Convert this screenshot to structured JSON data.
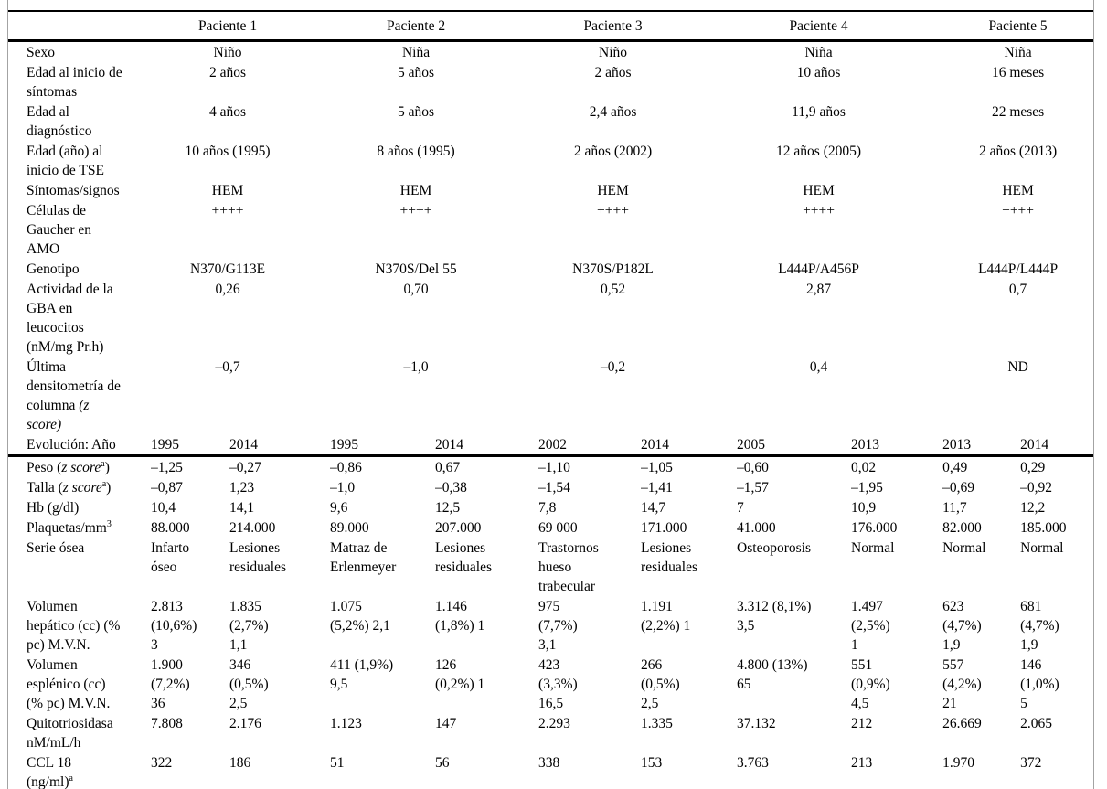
{
  "table": {
    "corner_label": "",
    "patients": [
      "Paciente 1",
      "Paciente 2",
      "Paciente 3",
      "Paciente 4",
      "Paciente 5"
    ],
    "grouped_rows": [
      {
        "id": "sexo",
        "label": [
          {
            "t": "n",
            "v": "Sexo"
          }
        ],
        "values": [
          "Niño",
          "Niña",
          "Niño",
          "Niña",
          "Niña"
        ]
      },
      {
        "id": "edad-inicio-sintomas",
        "label": [
          {
            "t": "n",
            "v": "Edad al inicio de\nsíntomas"
          }
        ],
        "values": [
          "2 años",
          "5 años",
          "2 años",
          "10 años",
          "16 meses"
        ]
      },
      {
        "id": "edad-diagnostico",
        "label": [
          {
            "t": "n",
            "v": "Edad al\ndiagnóstico"
          }
        ],
        "values": [
          "4 años",
          "5 años",
          "2,4 años",
          "11,9 años",
          "22 meses"
        ]
      },
      {
        "id": "edad-inicio-tse",
        "label": [
          {
            "t": "n",
            "v": "Edad (año) al\ninicio de TSE"
          }
        ],
        "values": [
          "10 años (1995)",
          "8 años (1995)",
          "2 años (2002)",
          "12 años (2005)",
          "2 años (2013)"
        ]
      },
      {
        "id": "sintomas-signos",
        "label": [
          {
            "t": "n",
            "v": "Síntomas/signos"
          }
        ],
        "values": [
          "HEM",
          "HEM",
          "HEM",
          "HEM",
          "HEM"
        ]
      },
      {
        "id": "celulas-gaucher-amo",
        "label": [
          {
            "t": "n",
            "v": "Células de\nGaucher en\nAMO"
          }
        ],
        "values": [
          "++++",
          "++++",
          "++++",
          "++++",
          "++++"
        ]
      },
      {
        "id": "genotipo",
        "label": [
          {
            "t": "n",
            "v": "Genotipo"
          }
        ],
        "values": [
          "N370/G113E",
          "N370S/Del 55",
          "N370S/P182L",
          "L444P/A456P",
          "L444P/L444P"
        ]
      },
      {
        "id": "actividad-gba",
        "label": [
          {
            "t": "n",
            "v": "Actividad de la\nGBA en\nleucocitos\n(nM/mg Pr.h)"
          }
        ],
        "values": [
          "0,26",
          "0,70",
          "0,52",
          "2,87",
          "0,7"
        ]
      },
      {
        "id": "ultima-densitometria",
        "label": [
          {
            "t": "n",
            "v": "Última\ndensitometría de\ncolumna "
          },
          {
            "t": "i",
            "v": "(z\nscore)"
          }
        ],
        "values": [
          "–0,7",
          "–1,0",
          "–0,2",
          "0,4",
          "ND"
        ]
      }
    ],
    "evolution_row": {
      "label": [
        {
          "t": "n",
          "v": "Evolución: Año"
        }
      ],
      "values": [
        "1995",
        "2014",
        "1995",
        "2014",
        "2002",
        "2014",
        "2005",
        "2013",
        "2013",
        "2014"
      ]
    },
    "detail_rows": [
      {
        "id": "peso-z-score",
        "label": [
          {
            "t": "n",
            "v": "Peso ("
          },
          {
            "t": "i",
            "v": "z score"
          },
          {
            "t": "s",
            "v": "a"
          },
          {
            "t": "n",
            "v": ")"
          }
        ],
        "values": [
          "–1,25",
          "–0,27",
          "–0,86",
          "0,67",
          "–1,10",
          "–1,05",
          "–0,60",
          "0,02",
          "0,49",
          "0,29"
        ]
      },
      {
        "id": "talla-z-score",
        "label": [
          {
            "t": "n",
            "v": "Talla ("
          },
          {
            "t": "i",
            "v": "z score"
          },
          {
            "t": "s",
            "v": "a"
          },
          {
            "t": "n",
            "v": ")"
          }
        ],
        "values": [
          "–0,87",
          "1,23",
          "–1,0",
          "–0,38",
          "–1,54",
          "–1,41",
          "–1,57",
          "–1,95",
          "–0,69",
          "–0,92"
        ]
      },
      {
        "id": "hb",
        "label": [
          {
            "t": "n",
            "v": "Hb (g/dl)"
          }
        ],
        "values": [
          "10,4",
          "14,1",
          "9,6",
          "12,5",
          "7,8",
          "14,7",
          "7",
          "10,9",
          "11,7",
          "12,2"
        ]
      },
      {
        "id": "plaquetas",
        "label": [
          {
            "t": "n",
            "v": "Plaquetas/mm"
          },
          {
            "t": "s",
            "v": "3"
          }
        ],
        "values": [
          "88.000",
          "214.000",
          "89.000",
          "207.000",
          "69 000",
          "171.000",
          "41.000",
          "176.000",
          "82.000",
          "185.000"
        ]
      },
      {
        "id": "serie-osea",
        "label": [
          {
            "t": "n",
            "v": "Serie ósea"
          }
        ],
        "values": [
          "Infarto\nóseo",
          "Lesiones\nresiduales",
          "Matraz de\nErlenmeyer",
          "Lesiones\nresiduales",
          "Trastornos\nhueso\ntrabecular",
          "Lesiones\nresiduales",
          "Osteoporosis",
          "Normal",
          "Normal",
          "Normal"
        ]
      },
      {
        "id": "volumen-hepatico",
        "label": [
          {
            "t": "n",
            "v": "Volumen\nhepático (cc) (%\npc) M.V.N."
          }
        ],
        "values": [
          "2.813\n(10,6%)\n3",
          "1.835\n(2,7%)\n1,1",
          "1.075\n(5,2%) 2,1",
          "1.146\n(1,8%) 1",
          "975\n(7,7%)\n3,1",
          "1.191\n(2,2%) 1",
          "3.312 (8,1%)\n3,5",
          "1.497\n(2,5%)\n1",
          "623\n(4,7%)\n1,9",
          "681\n(4,7%)\n1,9"
        ]
      },
      {
        "id": "volumen-esplenico",
        "label": [
          {
            "t": "n",
            "v": "Volumen\nesplénico (cc)\n(% pc) M.V.N."
          }
        ],
        "values": [
          "1.900\n(7,2%)\n36",
          "346\n(0,5%)\n2,5",
          "411 (1,9%)\n9,5",
          "126\n(0,2%) 1",
          "423\n(3,3%)\n16,5",
          "266\n(0,5%)\n2,5",
          "4.800 (13%)\n65",
          "551\n(0,9%)\n4,5",
          "557\n(4,2%)\n21",
          "146\n(1,0%)\n5"
        ]
      },
      {
        "id": "quitotriosidasa",
        "label": [
          {
            "t": "n",
            "v": "Quitotriosidasa\nnM/mL/h"
          }
        ],
        "values": [
          "7.808",
          "2.176",
          "1.123",
          "147",
          "2.293",
          "1.335",
          "37.132",
          "212",
          "26.669",
          "2.065"
        ]
      },
      {
        "id": "ccl18",
        "label": [
          {
            "t": "n",
            "v": "CCL 18\n(ng/ml)"
          },
          {
            "t": "s",
            "v": "a"
          }
        ],
        "values": [
          "322",
          "186",
          "51",
          "56",
          "338",
          "153",
          "3.763",
          "213",
          "1.970",
          "372"
        ]
      }
    ]
  }
}
